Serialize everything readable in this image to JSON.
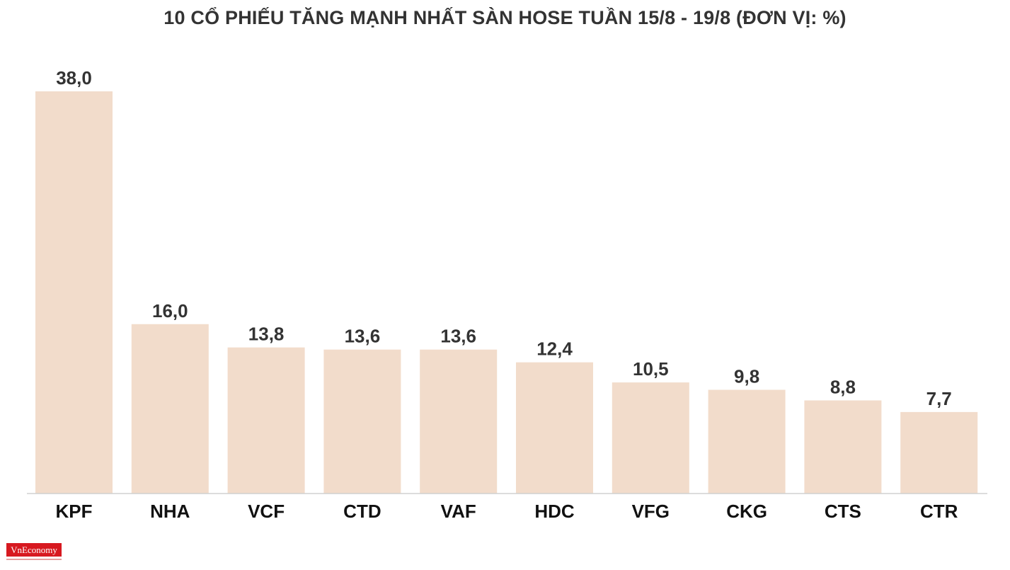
{
  "chart_data": {
    "type": "bar",
    "title": "10 CỔ PHIẾU TĂNG MẠNH NHẤT SÀN HOSE TUẦN 15/8 - 19/8 (ĐƠN VỊ: %)",
    "categories": [
      "KPF",
      "NHA",
      "VCF",
      "CTD",
      "VAF",
      "HDC",
      "VFG",
      "CKG",
      "CTS",
      "CTR"
    ],
    "values": [
      38.0,
      16.0,
      13.8,
      13.6,
      13.6,
      12.4,
      10.5,
      9.8,
      8.8,
      7.7
    ],
    "value_labels": [
      "38,0",
      "16,0",
      "13,8",
      "13,6",
      "13,6",
      "12,4",
      "10,5",
      "9,8",
      "8,8",
      "7,7"
    ],
    "ylim": [
      0,
      38
    ],
    "grid": false,
    "bar_color": "#f2dccb",
    "axis_color": "#d0d0d0"
  },
  "branding": {
    "logo_text": "VnEconomy",
    "logo_color": "#d71920"
  }
}
